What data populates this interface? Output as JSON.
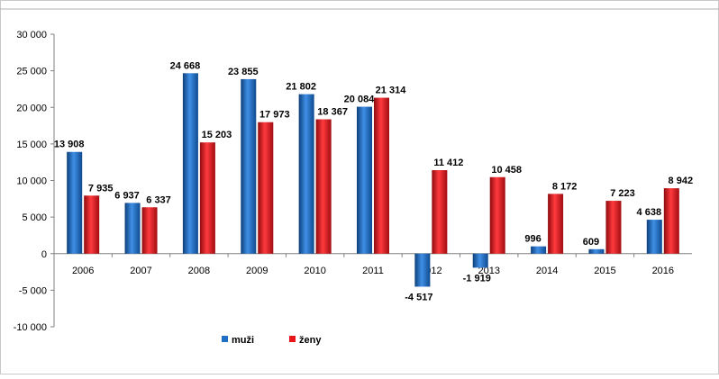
{
  "chart_data": {
    "type": "bar",
    "categories": [
      "2006",
      "2007",
      "2008",
      "2009",
      "2010",
      "2011",
      "2012",
      "2013",
      "2014",
      "2015",
      "2016"
    ],
    "series": [
      {
        "name": "muži",
        "color": "#1f6fc5",
        "values": [
          13908,
          6937,
          24668,
          23855,
          21802,
          20084,
          -4517,
          -1919,
          996,
          609,
          4638
        ],
        "labels": [
          "13 908",
          "6 937",
          "24 668",
          "23 855",
          "21 802",
          "20 084",
          "-4 517",
          "-1 919",
          "996",
          "609",
          "4 638"
        ]
      },
      {
        "name": "ženy",
        "color": "#e8161b",
        "values": [
          7935,
          6337,
          15203,
          17973,
          18367,
          21314,
          11412,
          10458,
          8172,
          7223,
          8942
        ],
        "labels": [
          "7 935",
          "6 337",
          "15 203",
          "17 973",
          "18 367",
          "21 314",
          "11 412",
          "10 458",
          "8 172",
          "7 223",
          "8 942"
        ]
      }
    ],
    "yticks": [
      30000,
      25000,
      20000,
      15000,
      10000,
      5000,
      0,
      -5000,
      -10000
    ],
    "ytick_labels": [
      "30 000",
      "25 000",
      "20 000",
      "15 000",
      "10 000",
      "5 000",
      "0",
      "-5 000",
      "-10 000"
    ],
    "ylim": [
      -10000,
      30000
    ],
    "grid": false,
    "legend": "bottom"
  }
}
